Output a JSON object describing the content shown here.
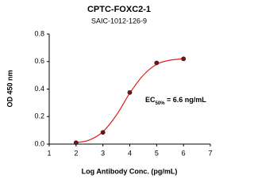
{
  "chart_data": {
    "type": "scatter",
    "title": "CPTC-FOXC2-1",
    "subtitle": "SAIC-1012-126-9",
    "x_label": "Log Antibody Conc. (pg/mL)",
    "y_label": "OD 450 nm",
    "annotation": {
      "text": "EC",
      "sub": "50%",
      "rest": " = 6.6 ng/mL"
    },
    "xlim": [
      1,
      7
    ],
    "xticks": [
      1,
      2,
      3,
      4,
      5,
      6,
      7
    ],
    "ylim": [
      0,
      0.8
    ],
    "yticks": [
      {
        "value": 0,
        "label": "0.0"
      },
      0.2,
      0.4,
      0.6,
      0.8
    ],
    "series": [
      {
        "kind": "points",
        "color": "#7a1010",
        "x": [
          2,
          3,
          4,
          5,
          6
        ],
        "values": [
          0.01,
          0.085,
          0.375,
          0.59,
          0.62
        ]
      },
      {
        "kind": "curve",
        "color": "#e0201b",
        "x": [
          2,
          2.5,
          3,
          3.5,
          4,
          4.5,
          5,
          5.5,
          6
        ],
        "values": [
          0.01,
          0.03,
          0.09,
          0.21,
          0.37,
          0.5,
          0.58,
          0.61,
          0.62
        ]
      }
    ]
  }
}
